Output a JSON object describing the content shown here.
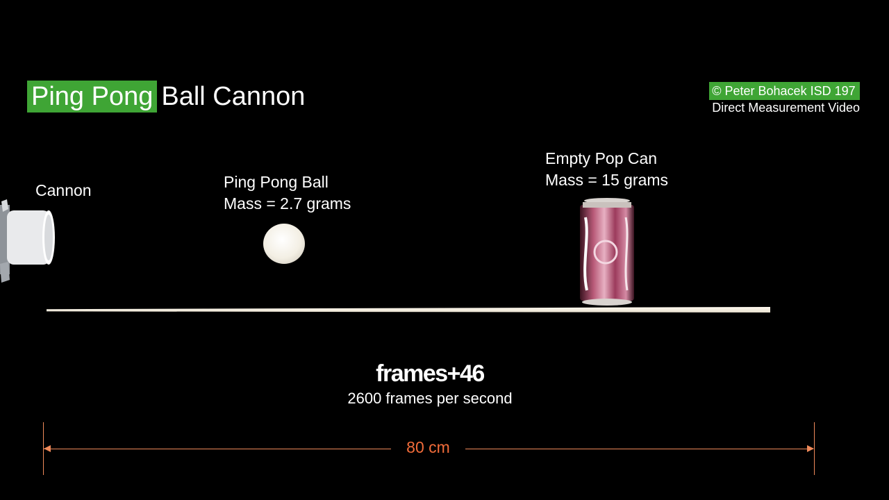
{
  "title": {
    "highlight": "Ping Pong",
    "rest": "Ball Cannon"
  },
  "credit": {
    "line1": "© Peter Bohacek ISD 197",
    "line2": "Direct Measurement Video"
  },
  "labels": {
    "cannon": "Cannon",
    "ball": {
      "name": "Ping Pong Ball",
      "mass": "Mass = 2.7 grams"
    },
    "can": {
      "name": "Empty Pop Can",
      "mass": "Mass = 15 grams"
    }
  },
  "frame_counter": {
    "value": "frames+46",
    "rate": "2600 frames per second"
  },
  "measurement": {
    "label": "80 cm"
  },
  "colors": {
    "highlight": "#3fa535",
    "measure": "#f26c3a",
    "background": "#000000"
  }
}
